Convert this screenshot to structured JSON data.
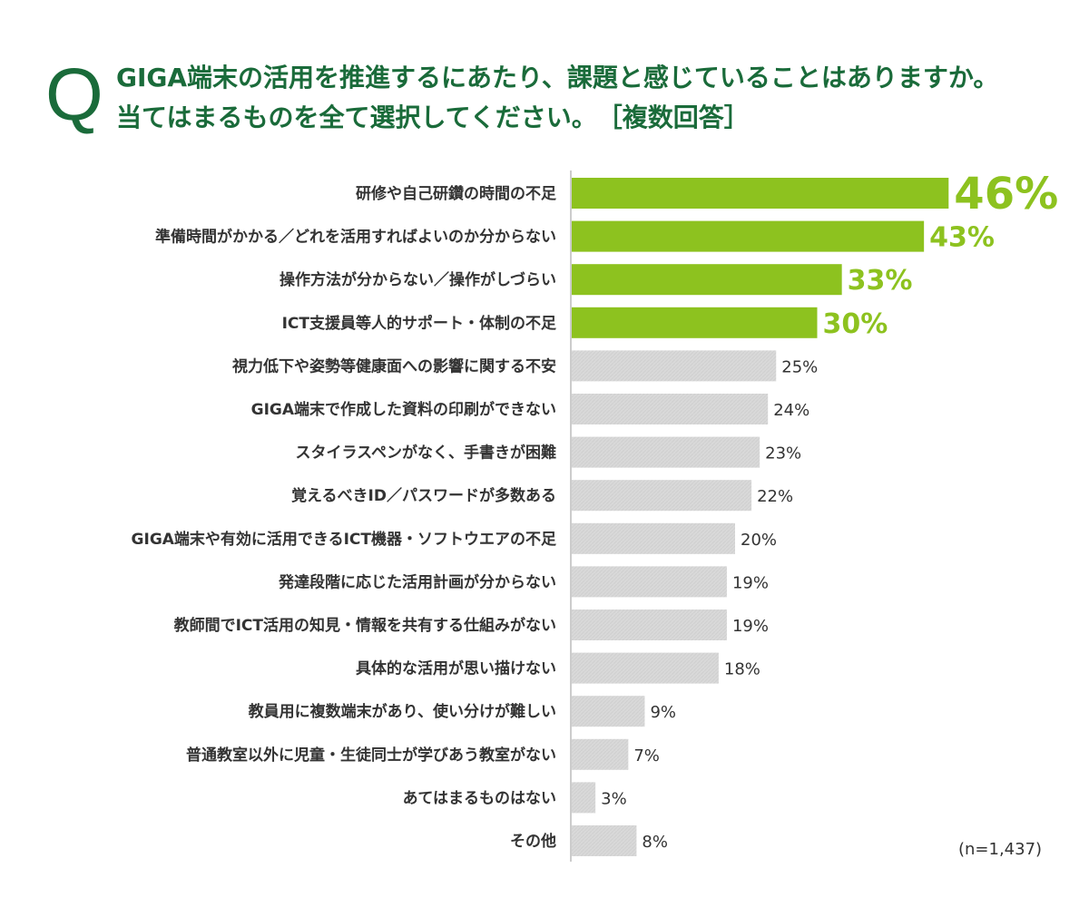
{
  "question": {
    "mark": "Q",
    "line1": "GIGA端末の活用を推進するにあたり、課題と感じていることはありますか。",
    "line2": "当てはまるものを全て選択してください。　［複数回答］"
  },
  "sample_size": "(n=1,437)",
  "colors": {
    "highlight": "#8dc21f",
    "default": "#d9d9d9",
    "title": "#1a6b3a",
    "axis": "#cccccc"
  },
  "chart_data": {
    "type": "bar",
    "orientation": "horizontal",
    "categories": [
      "研修や自己研鑽の時間の不足",
      "準備時間がかかる／どれを活用すればよいのか分からない",
      "操作方法が分からない／操作がしづらい",
      "ICT支援員等人的サポート・体制の不足",
      "視力低下や姿勢等健康面への影響に関する不安",
      "GIGA端末で作成した資料の印刷ができない",
      "スタイラスペンがなく、手書きが困難",
      "覚えるべきID／パスワードが多数ある",
      "GIGA端末や有効に活用できるICT機器・ソフトウエアの不足",
      "発達段階に応じた活用計画が分からない",
      "教師間でICT活用の知見・情報を共有する仕組みがない",
      "具体的な活用が思い描けない",
      "教員用に複数端末があり、使い分けが難しい",
      "普通教室以外に児童・生徒同士が学びあう教室がない",
      "あてはまるものはない",
      "その他"
    ],
    "values": [
      46,
      43,
      33,
      30,
      25,
      24,
      23,
      22,
      20,
      19,
      19,
      18,
      9,
      7,
      3,
      8
    ],
    "value_labels": [
      "46%",
      "43%",
      "33%",
      "30%",
      "25%",
      "24%",
      "23%",
      "22%",
      "20%",
      "19%",
      "19%",
      "18%",
      "9%",
      "7%",
      "3%",
      "8%"
    ],
    "highlighted_top": 4,
    "unit": "%",
    "xlim": [
      0,
      50
    ]
  }
}
